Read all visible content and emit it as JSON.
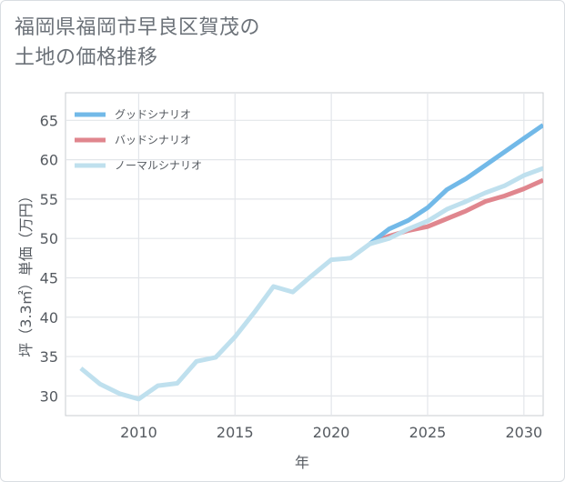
{
  "title": {
    "line1": "福岡県福岡市早良区賀茂の",
    "line2": "土地の価格推移"
  },
  "chart_data": {
    "type": "line",
    "title": "福岡県福岡市早良区賀茂の土地の価格推移",
    "xlabel": "年",
    "ylabel": "坪（3.3㎡）単価（万円）",
    "xlim": [
      2006.2,
      2031
    ],
    "ylim": [
      27.5,
      68.5
    ],
    "xticks": [
      2010,
      2015,
      2020,
      2025,
      2030
    ],
    "yticks": [
      30,
      35,
      40,
      45,
      50,
      55,
      60,
      65
    ],
    "grid": true,
    "legend_position": "top-left",
    "series": [
      {
        "name": "グッドシナリオ",
        "color": "#72b9e8",
        "x": [
          2022,
          2023,
          2024,
          2025,
          2026,
          2027,
          2028,
          2029,
          2030,
          2031
        ],
        "values": [
          49.3,
          51.2,
          52.3,
          53.9,
          56.2,
          57.6,
          59.3,
          61.0,
          62.7,
          64.4
        ]
      },
      {
        "name": "バッドシナリオ",
        "color": "#e0868e",
        "x": [
          2022,
          2023,
          2024,
          2025,
          2026,
          2027,
          2028,
          2029,
          2030,
          2031
        ],
        "values": [
          49.3,
          50.3,
          51.0,
          51.5,
          52.5,
          53.5,
          54.7,
          55.4,
          56.3,
          57.4
        ]
      },
      {
        "name": "ノーマルシナリオ",
        "color": "#bfe0ee",
        "x": [
          2007,
          2008,
          2009,
          2010,
          2011,
          2012,
          2013,
          2014,
          2015,
          2016,
          2017,
          2018,
          2019,
          2020,
          2021,
          2022,
          2023,
          2024,
          2025,
          2026,
          2027,
          2028,
          2029,
          2030,
          2031
        ],
        "values": [
          33.5,
          31.5,
          30.3,
          29.6,
          31.3,
          31.6,
          34.4,
          34.9,
          37.5,
          40.6,
          43.9,
          43.2,
          45.3,
          47.3,
          47.5,
          49.3,
          50.0,
          51.2,
          52.2,
          53.7,
          54.7,
          55.8,
          56.7,
          58.0,
          58.9
        ]
      }
    ]
  }
}
